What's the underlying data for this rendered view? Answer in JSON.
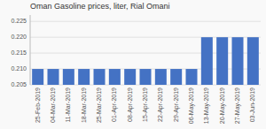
{
  "chart_data": {
    "type": "bar",
    "title": "Oman Gasoline prices, liter, Rial Omani",
    "categories": [
      "25-Feb-2019",
      "04-Mar-2019",
      "11-Mar-2019",
      "18-Mar-2019",
      "25-Mar-2019",
      "01-Apr-2019",
      "08-Apr-2019",
      "15-Apr-2019",
      "22-Apr-2019",
      "29-Apr-2019",
      "06-May-2019",
      "13-May-2019",
      "20-May-2019",
      "27-May-2019",
      "03-Jun-2019"
    ],
    "values": [
      0.21,
      0.21,
      0.21,
      0.21,
      0.21,
      0.21,
      0.21,
      0.21,
      0.21,
      0.21,
      0.21,
      0.22,
      0.22,
      0.22,
      0.22
    ],
    "color": "#4472c4",
    "ylim": [
      0.205,
      0.227
    ],
    "yticks": [
      0.205,
      {
        "value": 0.21,
        "label": "0.210"
      },
      0.215,
      {
        "value": 0.22,
        "label": "0.220"
      },
      0.225
    ],
    "grid": true
  }
}
